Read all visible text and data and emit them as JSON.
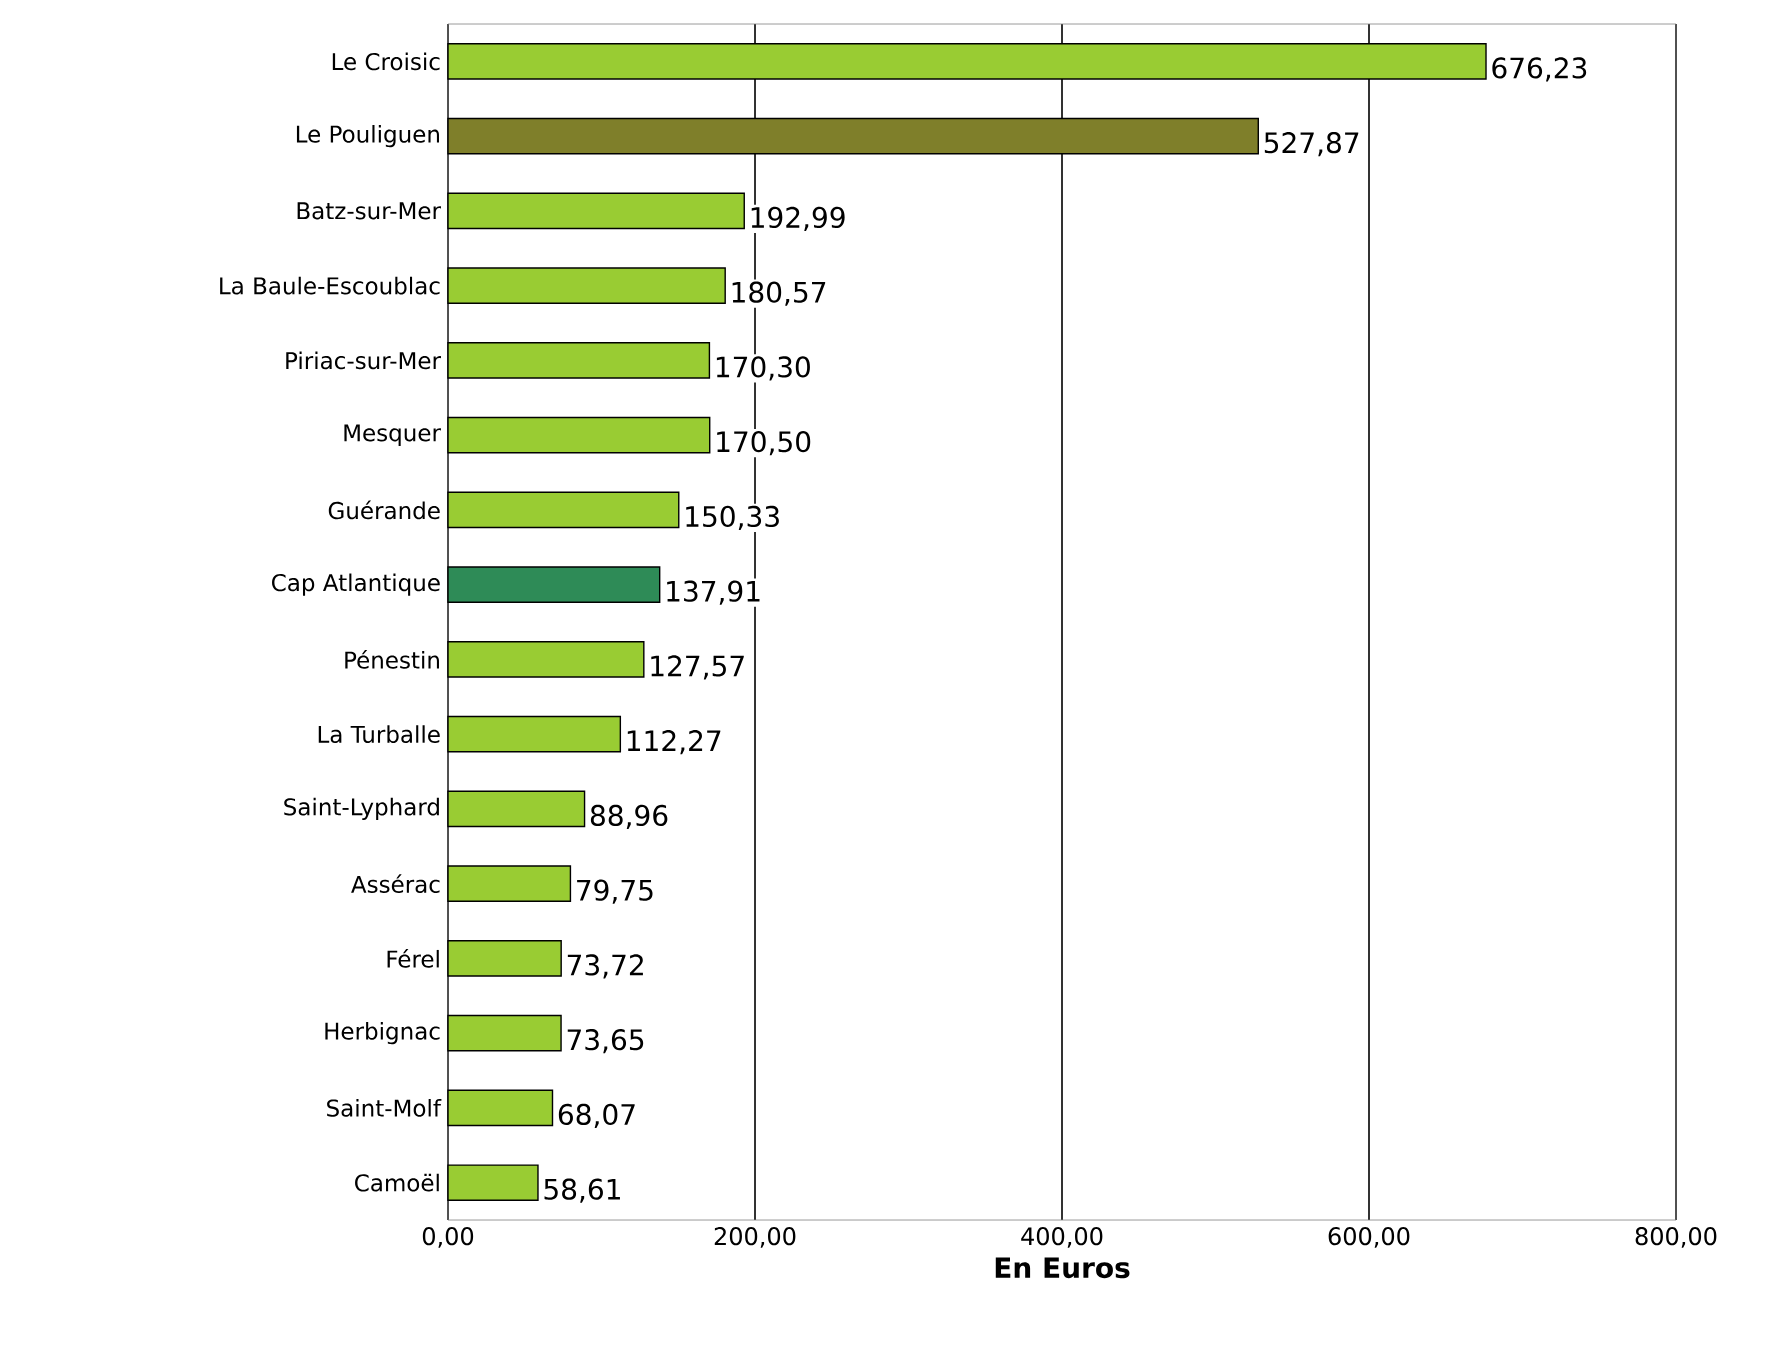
{
  "chart_data": {
    "type": "bar",
    "orientation": "horizontal",
    "xlabel": "En Euros",
    "categories": [
      "Le Croisic",
      "Le Pouliguen",
      "Batz-sur-Mer",
      "La Baule-Escoublac",
      "Piriac-sur-Mer",
      "Mesquer",
      "Guérande",
      "Cap Atlantique",
      "Pénestin",
      "La Turballe",
      "Saint-Lyphard",
      "Assérac",
      "Férel",
      "Herbignac",
      "Saint-Molf",
      "Camoël"
    ],
    "values": [
      676.23,
      527.87,
      192.99,
      180.57,
      170.3,
      170.5,
      150.33,
      137.91,
      127.57,
      112.27,
      88.96,
      79.75,
      73.72,
      73.65,
      68.07,
      58.61
    ],
    "colors": [
      "#99cc33",
      "#7f7f2a",
      "#99cc33",
      "#99cc33",
      "#99cc33",
      "#99cc33",
      "#99cc33",
      "#2e8b57",
      "#99cc33",
      "#99cc33",
      "#99cc33",
      "#99cc33",
      "#99cc33",
      "#99cc33",
      "#99cc33",
      "#99cc33"
    ],
    "value_labels": [
      "676,23",
      "527,87",
      "192,99",
      "180,57",
      "170,30",
      "170,50",
      "150,33",
      "137,91",
      "127,57",
      "112,27",
      "88,96",
      "79,75",
      "73,72",
      "73,65",
      "68,07",
      "58,61"
    ],
    "xlim": [
      0,
      800
    ],
    "xticks": [
      {
        "value": 0,
        "label": "0,00"
      },
      {
        "value": 200,
        "label": "200,00"
      },
      {
        "value": 400,
        "label": "400,00"
      },
      {
        "value": 600,
        "label": "600,00"
      },
      {
        "value": 800,
        "label": "800,00"
      }
    ],
    "grid": "x"
  }
}
